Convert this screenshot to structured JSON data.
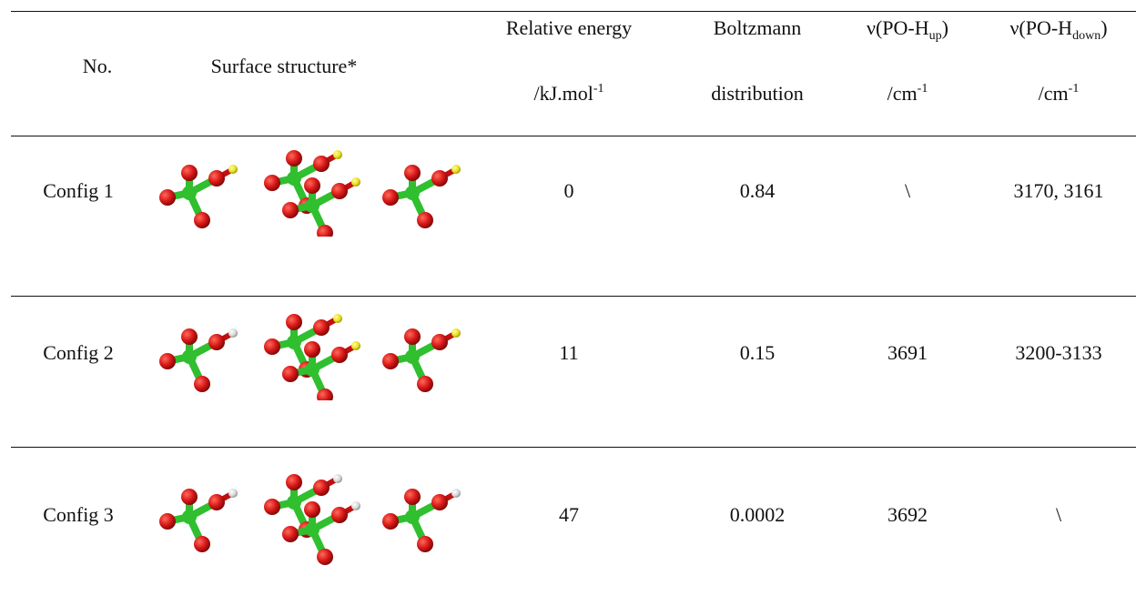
{
  "header": {
    "no": "No.",
    "structure": "Surface structure*",
    "energy_line1": "Relative energy",
    "energy_line2_prefix": "/kJ.mol",
    "energy_line2_sup": "-1",
    "boltz_line1": "Boltzmann",
    "boltz_line2": "distribution",
    "up_prefix": "ν(PO-H",
    "up_sub": "up",
    "up_suffix": ")",
    "up_unit": "/cm",
    "up_unit_sup": "-1",
    "down_prefix": "ν(PO-H",
    "down_sub": "down",
    "down_suffix": ")",
    "down_unit": "/cm",
    "down_unit_sup": "-1"
  },
  "rows": [
    {
      "no": "Config 1",
      "energy": "0",
      "boltzmann": "0.84",
      "up": "\\",
      "down": "3170, 3161",
      "h_color": "#e8e020"
    },
    {
      "no": "Config 2",
      "energy": "11",
      "boltzmann": "0.15",
      "up": "3691",
      "down": "3200-3133",
      "h_color": "#e8e020"
    },
    {
      "no": "Config 3",
      "energy": "47",
      "boltzmann": "0.0002",
      "up": "3692",
      "down": "\\",
      "h_color": "#d8d8d8"
    }
  ],
  "colors": {
    "phosphorus": "#2fbf2f",
    "oxygen": "#d81818",
    "h_surface": "#e8e020",
    "h_free": "#d8d8d8"
  }
}
